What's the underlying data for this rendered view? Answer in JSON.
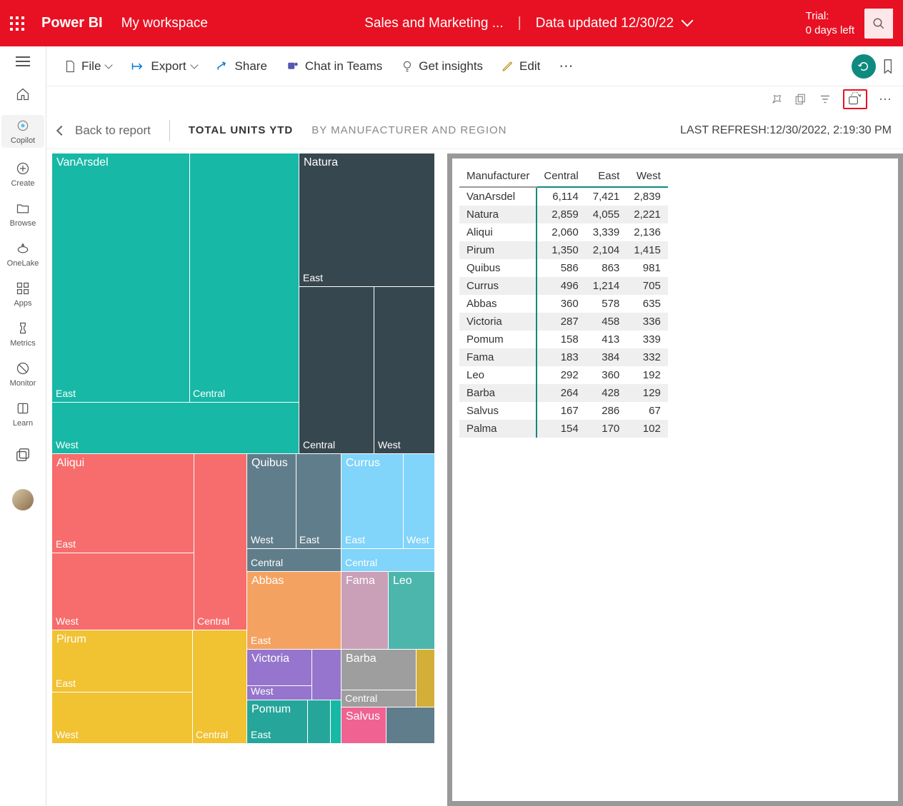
{
  "header": {
    "brand": "Power BI",
    "workspace": "My workspace",
    "report_name": "Sales and Marketing ...",
    "data_updated": "Data updated 12/30/22",
    "trial_label": "Trial:",
    "trial_days": "0 days left"
  },
  "nav": {
    "home": "Home",
    "copilot": "Copilot",
    "create": "Create",
    "browse": "Browse",
    "onelake": "OneLake",
    "apps": "Apps",
    "metrics": "Metrics",
    "monitor": "Monitor",
    "learn": "Learn"
  },
  "toolbar": {
    "file": "File",
    "export": "Export",
    "share": "Share",
    "chat": "Chat in Teams",
    "insights": "Get insights",
    "edit": "Edit"
  },
  "subheader": {
    "back": "Back to report",
    "title": "TOTAL UNITS YTD",
    "subtitle": "BY MANUFACTURER AND REGION",
    "refresh_label": "LAST REFRESH:",
    "refresh_time": "12/30/2022, 2:19:30 PM"
  },
  "colors": {
    "red": "#e81123",
    "vanarsdel": "#17b8a6",
    "natura": "#37474f",
    "aliqui": "#f76c6c",
    "quibus": "#607d8b",
    "currus": "#81d4fa",
    "pirum": "#f1c232",
    "abbas": "#f4a261",
    "victoria": "#9575cd",
    "pomum": "#26a69a",
    "fama": "#c9a0b8",
    "leo": "#4db6ac",
    "barba": "#9e9e9e",
    "salvus": "#f06292",
    "small_yellow": "#d4af37"
  },
  "treemap": {
    "vanarsdel": {
      "label": "VanArsdel",
      "east": "East",
      "central": "Central",
      "west": "West"
    },
    "natura": {
      "label": "Natura",
      "east": "East",
      "central": "Central",
      "west": "West"
    },
    "aliqui": {
      "label": "Aliqui",
      "east": "East",
      "west": "West",
      "central": "Central"
    },
    "quibus": {
      "label": "Quibus",
      "west": "West",
      "east": "East",
      "central": "Central"
    },
    "currus": {
      "label": "Currus",
      "east": "East",
      "west": "West",
      "central": "Central"
    },
    "pirum": {
      "label": "Pirum",
      "east": "East",
      "west": "West",
      "central": "Central"
    },
    "abbas": {
      "label": "Abbas",
      "east": "East"
    },
    "victoria": {
      "label": "Victoria",
      "west": "West"
    },
    "pomum": {
      "label": "Pomum",
      "east": "East"
    },
    "fama": {
      "label": "Fama"
    },
    "leo": {
      "label": "Leo"
    },
    "barba": {
      "label": "Barba",
      "central": "Central"
    },
    "salvus": {
      "label": "Salvus"
    }
  },
  "table": {
    "columns": [
      "Manufacturer",
      "Central",
      "East",
      "West"
    ],
    "rows": [
      [
        "VanArsdel",
        "6,114",
        "7,421",
        "2,839"
      ],
      [
        "Natura",
        "2,859",
        "4,055",
        "2,221"
      ],
      [
        "Aliqui",
        "2,060",
        "3,339",
        "2,136"
      ],
      [
        "Pirum",
        "1,350",
        "2,104",
        "1,415"
      ],
      [
        "Quibus",
        "586",
        "863",
        "981"
      ],
      [
        "Currus",
        "496",
        "1,214",
        "705"
      ],
      [
        "Abbas",
        "360",
        "578",
        "635"
      ],
      [
        "Victoria",
        "287",
        "458",
        "336"
      ],
      [
        "Pomum",
        "158",
        "413",
        "339"
      ],
      [
        "Fama",
        "183",
        "384",
        "332"
      ],
      [
        "Leo",
        "292",
        "360",
        "192"
      ],
      [
        "Barba",
        "264",
        "428",
        "129"
      ],
      [
        "Salvus",
        "167",
        "286",
        "67"
      ],
      [
        "Palma",
        "154",
        "170",
        "102"
      ]
    ]
  }
}
